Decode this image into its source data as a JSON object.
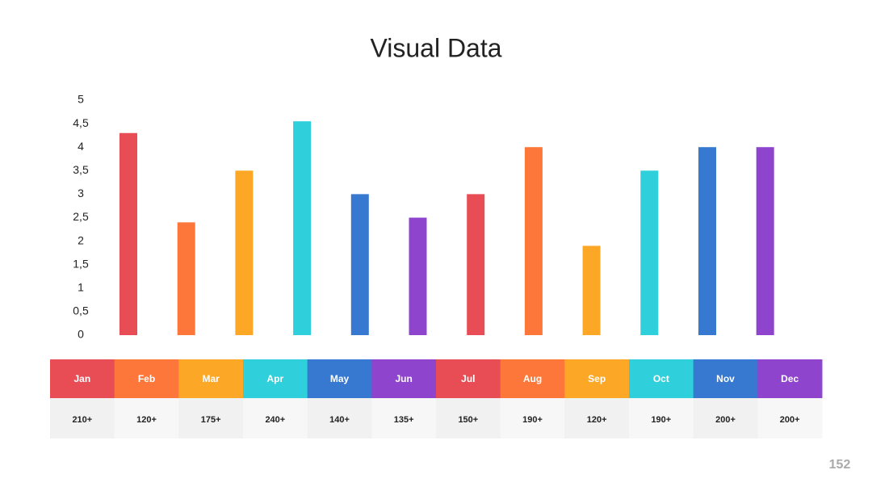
{
  "chart_data": {
    "type": "bar",
    "title": "Visual Data",
    "categories": [
      "Jan",
      "Feb",
      "Mar",
      "Apr",
      "May",
      "Jun",
      "Jul",
      "Aug",
      "Sep",
      "Oct",
      "Nov",
      "Dec"
    ],
    "values": [
      4.3,
      2.4,
      3.5,
      4.55,
      3,
      2.5,
      3,
      4,
      1.9,
      3.5,
      4,
      4
    ],
    "colors": [
      "#e84c55",
      "#fd773a",
      "#fda726",
      "#2fd0db",
      "#3779d1",
      "#8e44cc",
      "#e84c55",
      "#fd773a",
      "#fda726",
      "#2fd0db",
      "#3779d1",
      "#8e44cc"
    ],
    "ylim": [
      0,
      5
    ],
    "yticks": [
      0,
      {
        "value": 0.5,
        "label": "0,5"
      },
      1,
      {
        "value": 1.5,
        "label": "1,5"
      },
      2,
      {
        "value": 2.5,
        "label": "2,5"
      },
      3,
      {
        "value": 3.5,
        "label": "3,5"
      },
      4,
      {
        "value": 4.5,
        "label": "4,5"
      },
      5
    ],
    "grid": false
  },
  "table": {
    "values": [
      "210+",
      "120+",
      "175+",
      "240+",
      "140+",
      "135+",
      "150+",
      "190+",
      "120+",
      "190+",
      "200+",
      "200+"
    ]
  },
  "page_number": "152"
}
